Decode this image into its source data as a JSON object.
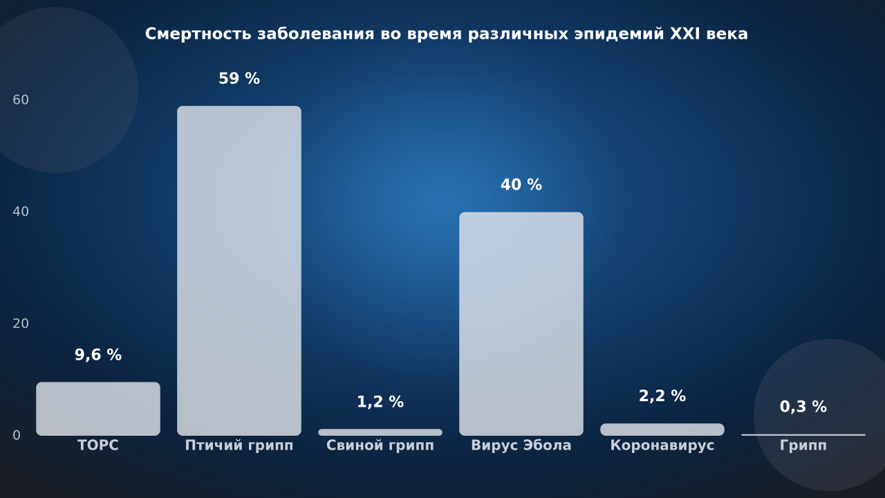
{
  "chart_data": {
    "type": "bar",
    "title": "Смертность заболевания во время различных эпидемий XXI века",
    "categories": [
      "ТОРС",
      "Птичий грипп",
      "Свиной грипп",
      "Вирус Эбола",
      "Коронавирус",
      "Грипп"
    ],
    "values": [
      9.6,
      59,
      1.2,
      40,
      2.2,
      0.3
    ],
    "value_labels": [
      "9,6 %",
      "59 %",
      "1,2 %",
      "40 %",
      "2,2 %",
      "0,3 %"
    ],
    "color": "#e8eaf0",
    "ylim": [
      0,
      60
    ],
    "yticks": [
      0,
      20,
      40,
      60
    ],
    "grid": false
  }
}
